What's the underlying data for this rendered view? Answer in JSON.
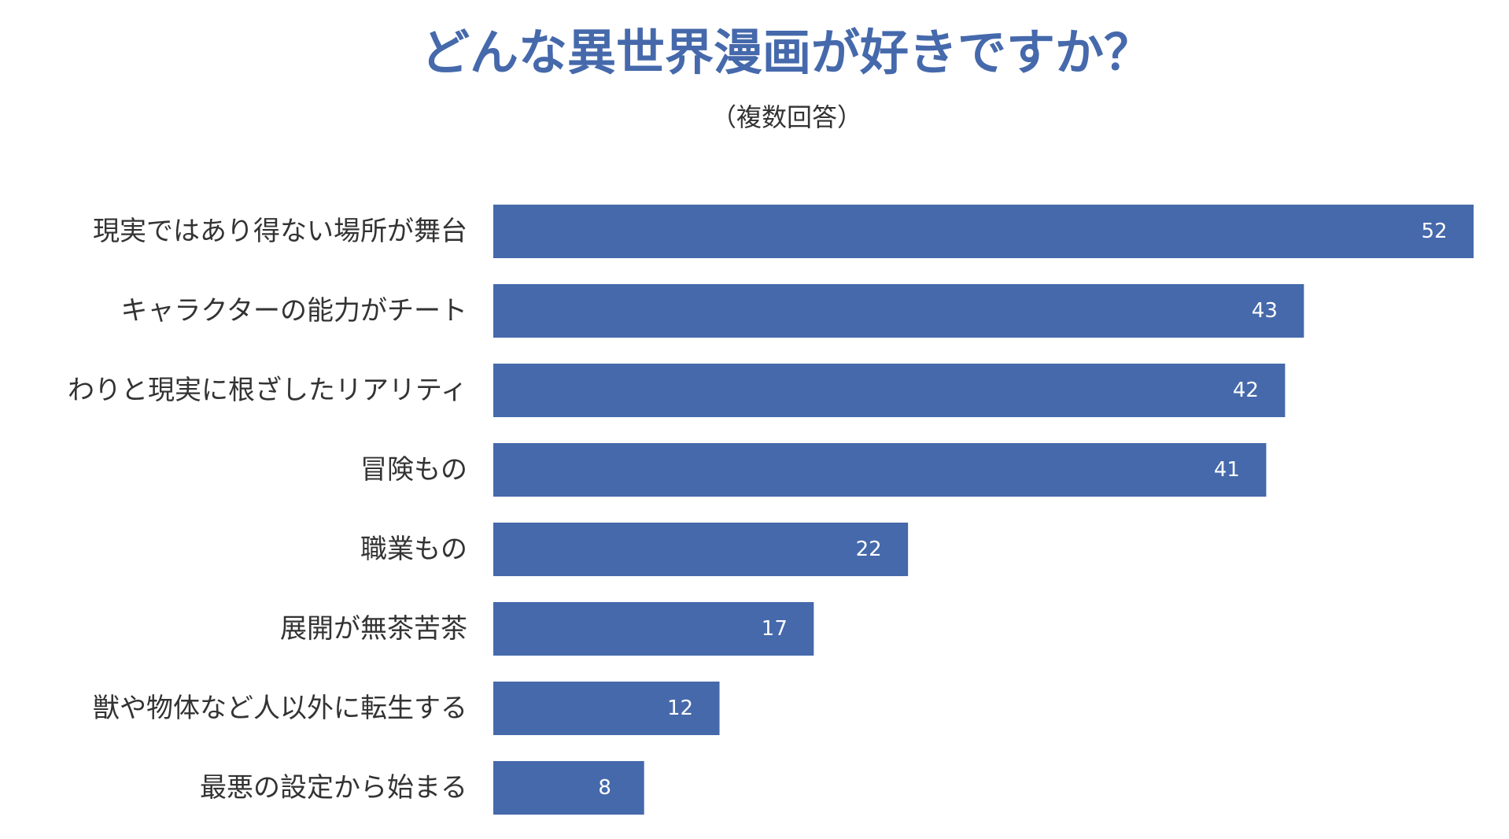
{
  "chart_data": {
    "type": "bar",
    "orientation": "horizontal",
    "title": "どんな異世界漫画が好きですか？",
    "subtitle": "（複数回答）",
    "categories": [
      "現実ではあり得ない場所が舞台",
      "キャラクターの能力がチート",
      "わりと現実に根ざしたリアリティ",
      "冒険もの",
      "職業もの",
      "展開が無茶苦茶",
      "獣や物体など人以外に転生する",
      "最悪の設定から始まる"
    ],
    "values": [
      52,
      43,
      42,
      41,
      22,
      17,
      12,
      8
    ],
    "xlim": [
      0,
      52
    ],
    "grid": false,
    "legend": "none",
    "data_labels": "inside-end"
  },
  "colors": {
    "bar": "#4569ab",
    "title": "#4569ab",
    "text": "#333333",
    "value_label": "#ffffff"
  }
}
